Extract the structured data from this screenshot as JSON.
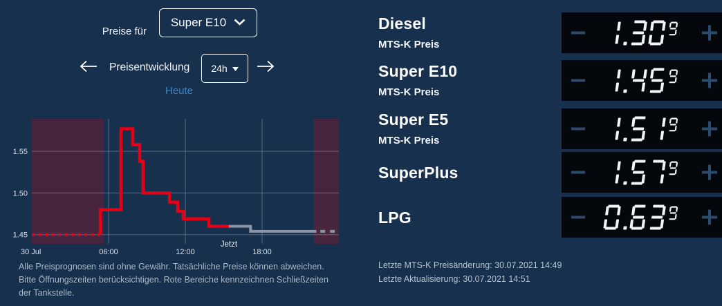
{
  "colors": {
    "background": "#17304e",
    "accent_blue": "#3d86c5",
    "line_red": "#e60015",
    "line_gray": "#8b95a5",
    "closed_region": "rgba(111,30,50,0.55)",
    "grid": "rgba(255,255,255,0.28)",
    "axis_text": "#dce3ea",
    "display_bg": "#04070b",
    "display_digits": "#f2f4f6",
    "pm_button": "#2d4b6e"
  },
  "controls": {
    "preise_fuer_label": "Preise für",
    "fuel_select_value": "Super E10",
    "range_title": "Preisentwicklung",
    "range_select_value": "24h",
    "day_label": "Heute"
  },
  "icons": {
    "fuel_select": "chevron-down",
    "range_select": "caret-down",
    "prev": "arrow-left",
    "next": "arrow-right"
  },
  "chart_data": {
    "type": "line",
    "title": "Preisentwicklung 24h – Super E10",
    "xlim": [
      0,
      24
    ],
    "ylim": [
      1.439,
      1.589
    ],
    "grid": true,
    "y_ticks": [
      {
        "v": 1.45,
        "label": "1.45"
      },
      {
        "v": 1.5,
        "label": "1.50"
      },
      {
        "v": 1.55,
        "label": "1.55"
      }
    ],
    "x_ticks": [
      {
        "t": 0,
        "label": "30 Jul",
        "align": "start",
        "grid": false
      },
      {
        "t": 6,
        "label": "06:00",
        "align": "middle",
        "grid": true
      },
      {
        "t": 12,
        "label": "12:00",
        "align": "middle",
        "grid": true
      },
      {
        "t": 18,
        "label": "18:00",
        "align": "middle",
        "grid": true
      }
    ],
    "now_marker": {
      "t": 15.4,
      "label": "Jetzt"
    },
    "closed_regions": [
      [
        0,
        5.62
      ],
      [
        22.0,
        24
      ]
    ],
    "series": [
      {
        "name": "preis-historie-gepunktet",
        "color": "red",
        "style": "dotted",
        "points": [
          [
            0.05,
            1.45
          ],
          [
            5.3,
            1.45
          ]
        ]
      },
      {
        "name": "preisverlauf",
        "color": "red",
        "style": "solid",
        "points": [
          [
            5.35,
            1.45
          ],
          [
            5.35,
            1.48
          ],
          [
            6.97,
            1.48
          ],
          [
            6.97,
            1.577
          ],
          [
            7.89,
            1.577
          ],
          [
            7.89,
            1.558
          ],
          [
            8.43,
            1.558
          ],
          [
            8.43,
            1.538
          ],
          [
            8.7,
            1.538
          ],
          [
            8.7,
            1.5
          ],
          [
            10.76,
            1.5
          ],
          [
            10.76,
            1.489
          ],
          [
            11.4,
            1.489
          ],
          [
            11.4,
            1.478
          ],
          [
            11.84,
            1.478
          ],
          [
            11.84,
            1.469
          ],
          [
            13.84,
            1.469
          ],
          [
            13.84,
            1.46
          ],
          [
            15.4,
            1.46
          ]
        ]
      },
      {
        "name": "prognose",
        "color": "gray",
        "style": "solid",
        "points": [
          [
            15.4,
            1.46
          ],
          [
            17.1,
            1.46
          ],
          [
            17.1,
            1.454
          ],
          [
            22.25,
            1.454
          ]
        ]
      },
      {
        "name": "prognose-gepunktet",
        "color": "gray",
        "style": "dashed",
        "points": [
          [
            22.55,
            1.454
          ],
          [
            24,
            1.454
          ]
        ]
      }
    ]
  },
  "disclaimer": "Alle Preisprognosen sind ohne Gewähr. Tatsächliche Preise können abweichen. Bitte Öffnungszeiten berücksichtigen. Rote Bereiche kennzeichnen Schließzeiten der Tankstelle.",
  "fuels": [
    {
      "name": "Diesel",
      "subtitle": "MTS-K Preis",
      "price": "1.309"
    },
    {
      "name": "Super E10",
      "subtitle": "MTS-K Preis",
      "price": "1.459"
    },
    {
      "name": "Super E5",
      "subtitle": "MTS-K Preis",
      "price": "1.519"
    },
    {
      "name": "SuperPlus",
      "subtitle": "",
      "price": "1.579"
    },
    {
      "name": "LPG",
      "subtitle": "",
      "price": "0.639"
    }
  ],
  "footer": {
    "last_price_change": "Letzte MTS-K Preisänderung: 30.07.2021 14:49",
    "last_update": "Letzte Aktualisierung: 30.07.2021 14:51"
  }
}
